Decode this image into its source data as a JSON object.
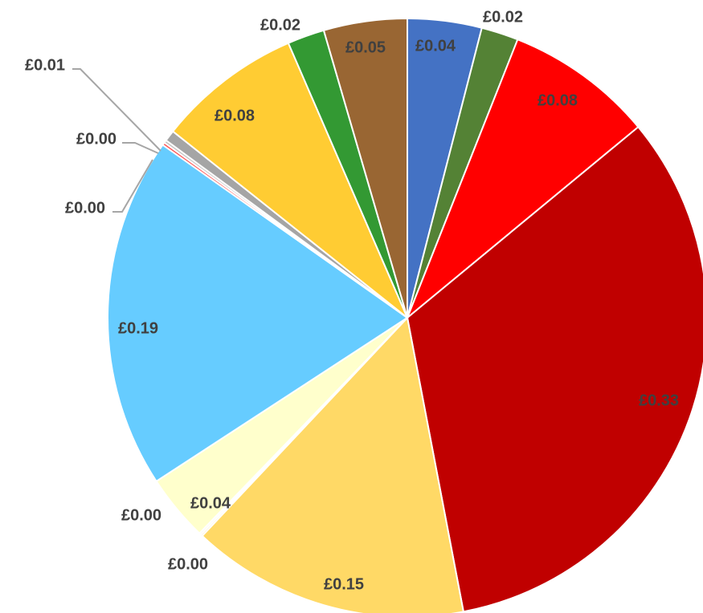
{
  "chart_data": {
    "type": "pie",
    "currency": "£",
    "slices": [
      {
        "label": "£0.04",
        "value": 0.04,
        "color": "#4472C4"
      },
      {
        "label": "£0.02",
        "value": 0.02,
        "color": "#548235"
      },
      {
        "label": "£0.08",
        "value": 0.08,
        "color": "#FF0000"
      },
      {
        "label": "£0.33",
        "value": 0.33,
        "color": "#C00000"
      },
      {
        "label": "£0.15",
        "value": 0.15,
        "color": "#FFD966"
      },
      {
        "label": "£0.00",
        "value": 0.001,
        "color": "#FFE699"
      },
      {
        "label": "£0.00",
        "value": 0.001,
        "color": "#FFF2CC"
      },
      {
        "label": "£0.04",
        "value": 0.036,
        "color": "#FFFFCC"
      },
      {
        "label": "£0.19",
        "value": 0.19,
        "color": "#66CCFF"
      },
      {
        "label": "£0.00",
        "value": 0.0015,
        "color": "#FF5050"
      },
      {
        "label": "£0.00",
        "value": 0.0015,
        "color": "#BFBFBF"
      },
      {
        "label": "£0.01",
        "value": 0.006,
        "color": "#A5A5A5"
      },
      {
        "label": "£0.08",
        "value": 0.078,
        "color": "#FFCC33"
      },
      {
        "label": "£0.02",
        "value": 0.02,
        "color": "#339933"
      },
      {
        "label": "£0.05",
        "value": 0.045,
        "color": "#996633"
      }
    ]
  }
}
